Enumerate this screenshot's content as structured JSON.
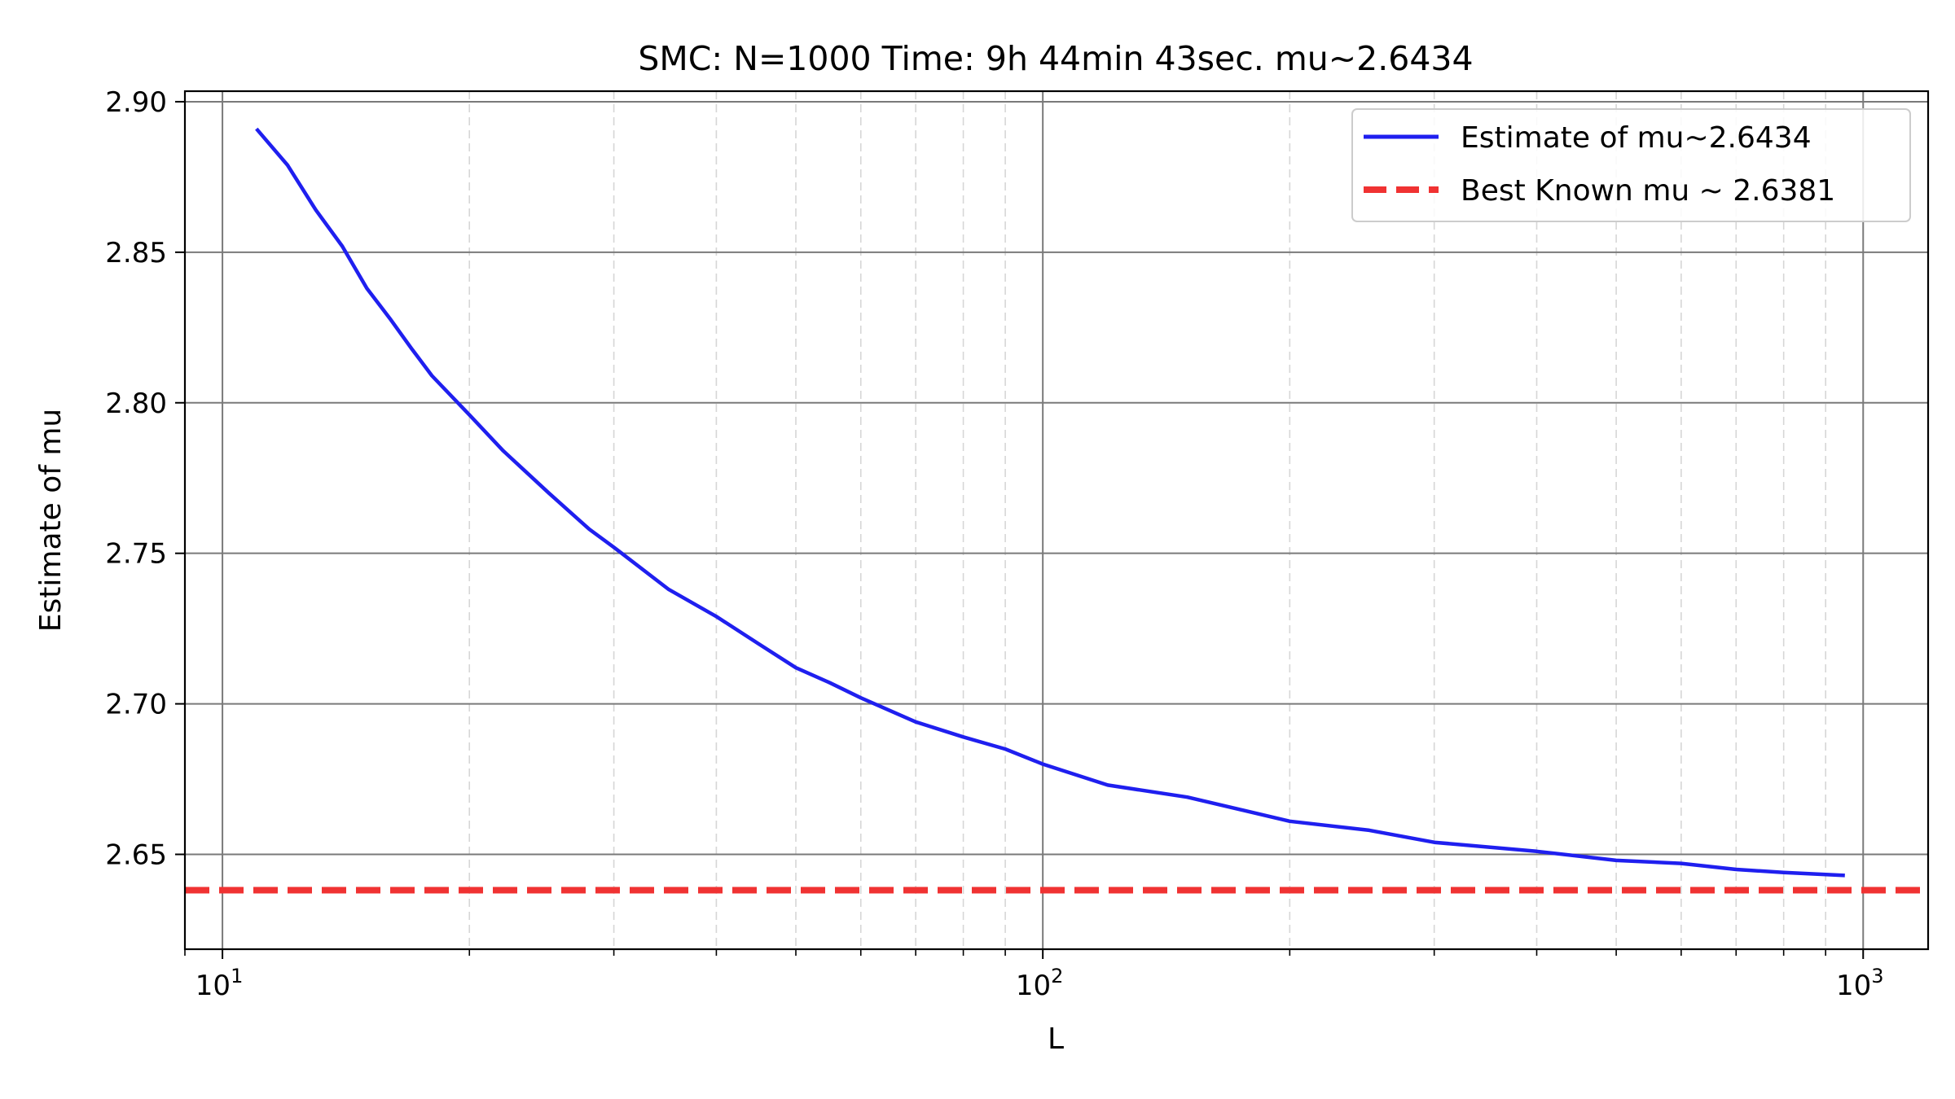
{
  "chart_data": {
    "type": "line",
    "title": "SMC: N=1000  Time: 9h 44min 43sec.  mu~2.6434",
    "xlabel": "L",
    "ylabel": "Estimate of mu",
    "x_scale": "log",
    "xlim": [
      9,
      1200
    ],
    "ylim": [
      2.6185,
      2.9035
    ],
    "x_ticks": [
      {
        "value": 10,
        "base": "10",
        "exp": "1"
      },
      {
        "value": 100,
        "base": "10",
        "exp": "2"
      },
      {
        "value": 1000,
        "base": "10",
        "exp": "3"
      }
    ],
    "y_ticks": [
      {
        "value": 2.65,
        "label": "2.65"
      },
      {
        "value": 2.7,
        "label": "2.70"
      },
      {
        "value": 2.75,
        "label": "2.75"
      },
      {
        "value": 2.8,
        "label": "2.80"
      },
      {
        "value": 2.85,
        "label": "2.85"
      },
      {
        "value": 2.9,
        "label": "2.90"
      }
    ],
    "grid": {
      "major": true,
      "minor_x": true,
      "minor_style": "dashed"
    },
    "legend_placement": "top-right",
    "series": [
      {
        "name": "Estimate of mu~2.6434",
        "style": "solid",
        "color": "#1f1fef",
        "x": [
          11,
          12,
          13,
          14,
          15,
          16,
          17,
          18,
          20,
          22,
          25,
          28,
          30,
          35,
          40,
          45,
          50,
          55,
          60,
          70,
          80,
          90,
          100,
          120,
          150,
          200,
          250,
          300,
          400,
          500,
          600,
          700,
          800,
          950
        ],
        "y": [
          2.891,
          2.879,
          2.864,
          2.852,
          2.838,
          2.828,
          2.818,
          2.809,
          2.796,
          2.784,
          2.77,
          2.758,
          2.752,
          2.738,
          2.729,
          2.72,
          2.712,
          2.707,
          2.702,
          2.694,
          2.689,
          2.685,
          2.68,
          2.673,
          2.669,
          2.661,
          2.658,
          2.654,
          2.651,
          2.648,
          2.647,
          2.645,
          2.644,
          2.643
        ]
      },
      {
        "name": "Best Known mu ~ 2.6381",
        "style": "dashed",
        "color": "#f03232",
        "y_constant": 2.6381
      }
    ]
  }
}
